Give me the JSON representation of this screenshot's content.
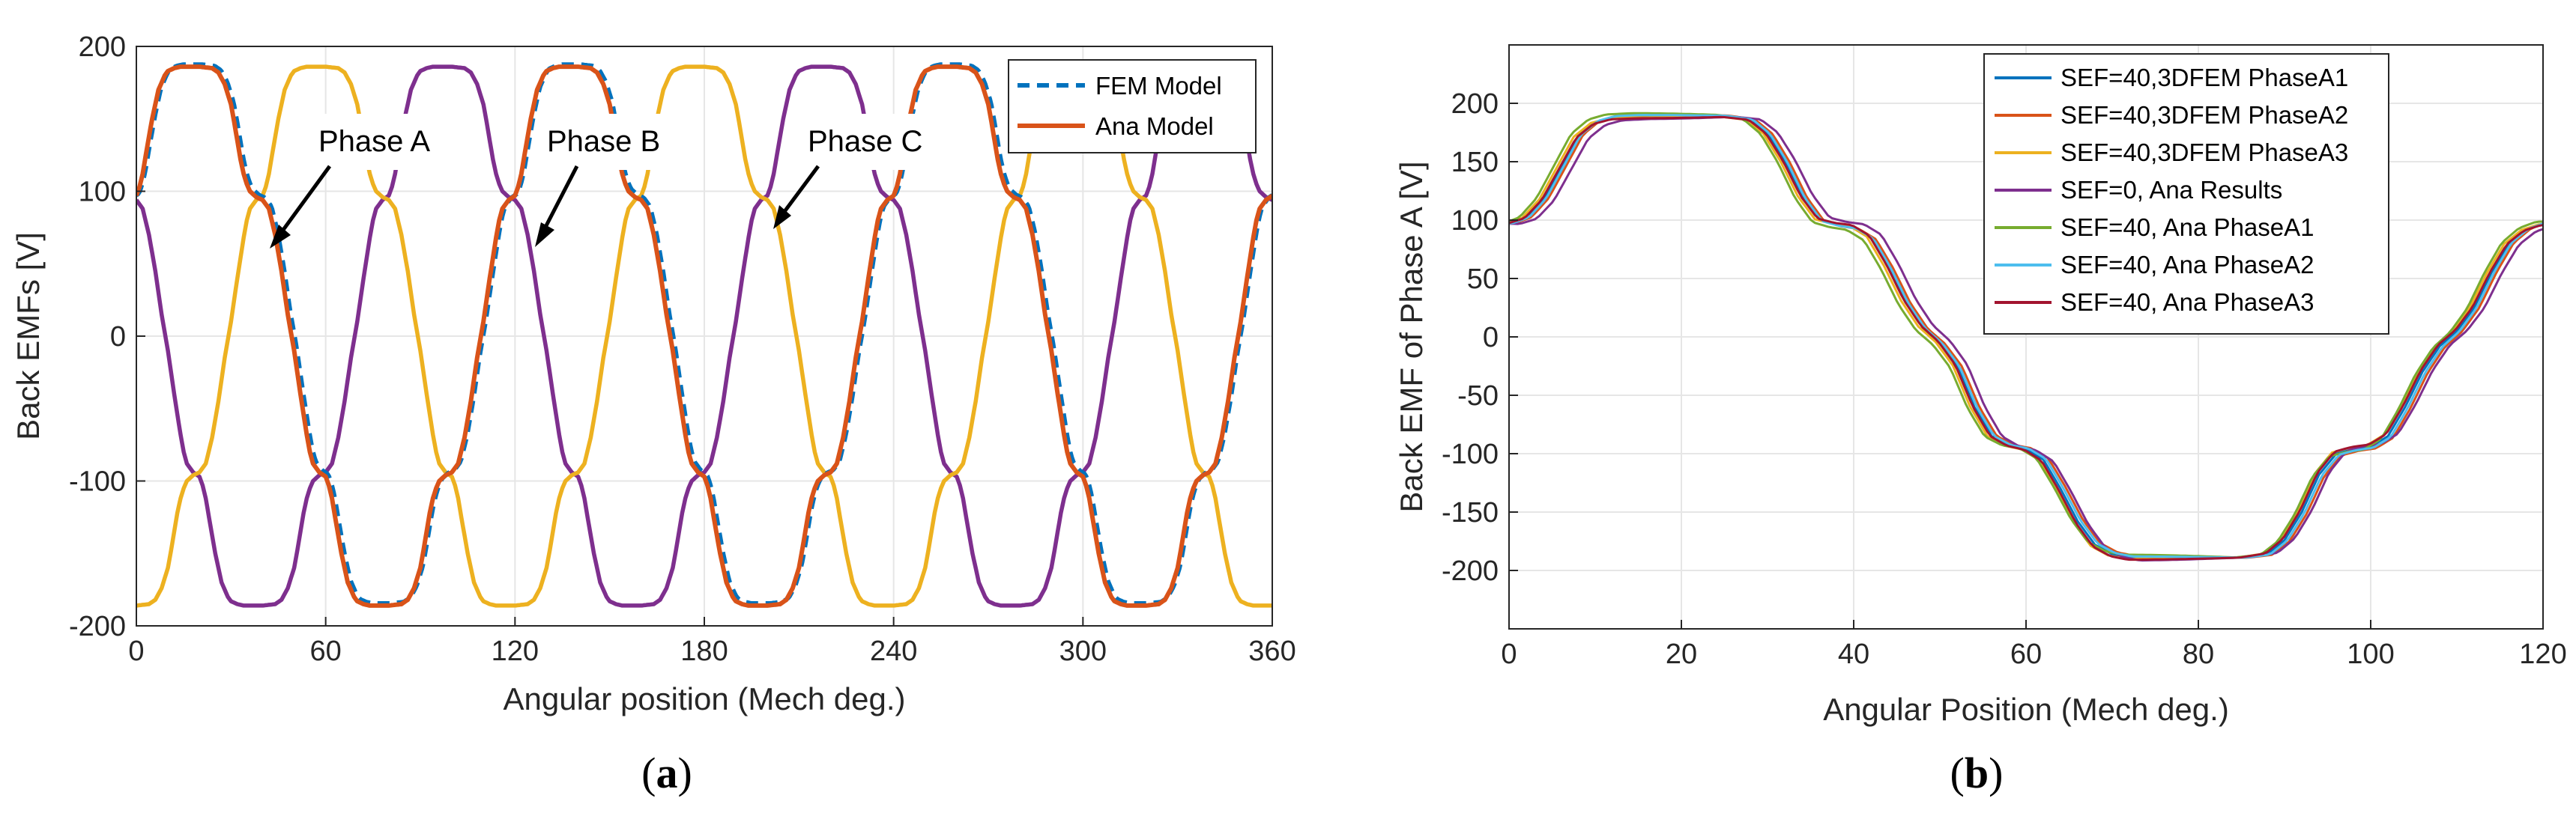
{
  "colors": {
    "grid": "#e6e6e6",
    "axis": "#262626",
    "fem": "#0072bd",
    "ana": "#d95319",
    "phaseB": "#7e2f8e",
    "phaseC": "#edb120",
    "b_series": [
      "#0072bd",
      "#d95319",
      "#edb120",
      "#7e2f8e",
      "#77ac30",
      "#4dbeee",
      "#a2142f"
    ]
  },
  "chart_data": [
    {
      "id": "a",
      "type": "line",
      "caption_open": "(",
      "caption_letter": "a",
      "caption_close": ")",
      "xlabel": "Angular position (Mech deg.)",
      "ylabel": "Back EMFs [V]",
      "xlim": [
        0,
        360
      ],
      "ylim": [
        -200,
        200
      ],
      "xticks": [
        0,
        60,
        120,
        180,
        240,
        300,
        360
      ],
      "yticks": [
        -200,
        -100,
        0,
        100,
        200
      ],
      "grid": true,
      "legend_position": "top-right",
      "legend": [
        {
          "name": "FEM Model",
          "style": "dashed",
          "color": "#0072bd"
        },
        {
          "name": "Ana Model",
          "style": "solid",
          "color": "#d95319"
        }
      ],
      "annotations": [
        {
          "text": "Phase A",
          "x": 40,
          "y": 60
        },
        {
          "text": "Phase B",
          "x": 122,
          "y": 60
        },
        {
          "text": "Phase C",
          "x": 200,
          "y": 72
        }
      ],
      "waveform": {
        "description": "trapezoidal back-EMF, period 120 mech deg",
        "shape_x": [
          0,
          1,
          2,
          3,
          5,
          7,
          9,
          10,
          12,
          14,
          16,
          18,
          20,
          24,
          26,
          28,
          30,
          31,
          32,
          33,
          34,
          35,
          36,
          38,
          40,
          42,
          44,
          46,
          47,
          48,
          50,
          52,
          54,
          55,
          56,
          58,
          60
        ],
        "shape_y": [
          97,
          103,
          112,
          125,
          150,
          170,
          180,
          183,
          185,
          186,
          186,
          186,
          186,
          185,
          182,
          174,
          160,
          148,
          135,
          122,
          112,
          105,
          100,
          96,
          94,
          88,
          70,
          45,
          30,
          15,
          -10,
          -40,
          -68,
          -80,
          -88,
          -94,
          -97
        ],
        "series": [
          {
            "name": "Phase A (Ana Model)",
            "shift": 0,
            "color": "#d95319"
          },
          {
            "name": "Phase A (FEM Model)",
            "shift": 0,
            "color": "#0072bd"
          },
          {
            "name": "Phase B",
            "shift": 80,
            "color": "#7e2f8e"
          },
          {
            "name": "Phase C",
            "shift": 40,
            "color": "#edb120"
          }
        ]
      }
    },
    {
      "id": "b",
      "type": "line",
      "caption_open": "(",
      "caption_letter": "b",
      "caption_close": ")",
      "xlabel": "Angular Position (Mech deg.)",
      "ylabel": "Back EMF of Phase A [V]",
      "xlim": [
        0,
        120
      ],
      "ylim": [
        -250,
        250
      ],
      "xticks": [
        0,
        20,
        40,
        60,
        80,
        100,
        120
      ],
      "yticks": [
        -200,
        -150,
        -100,
        -50,
        0,
        50,
        100,
        150,
        200
      ],
      "grid": true,
      "legend_position": "top-right",
      "x": [
        0,
        2,
        4,
        6,
        8,
        10,
        12,
        15,
        20,
        25,
        28,
        30,
        32,
        34,
        36,
        38,
        40,
        42,
        44,
        46,
        48,
        50,
        52,
        54,
        56,
        58,
        60,
        62,
        64,
        66,
        68,
        70,
        72,
        75,
        80,
        85,
        88,
        90,
        92,
        94,
        96,
        98,
        100,
        102,
        104,
        106,
        108,
        110,
        112,
        114,
        116,
        118,
        120
      ],
      "base_y": [
        97,
        102,
        118,
        145,
        172,
        184,
        188,
        189,
        189,
        189,
        186,
        174,
        150,
        120,
        100,
        96,
        94,
        85,
        60,
        30,
        8,
        -5,
        -25,
        -60,
        -85,
        -93,
        -96,
        -105,
        -130,
        -158,
        -178,
        -186,
        -189,
        -189,
        -189,
        -189,
        -186,
        -174,
        -150,
        -118,
        -100,
        -96,
        -94,
        -85,
        -60,
        -30,
        -8,
        5,
        25,
        55,
        80,
        92,
        97
      ],
      "series": [
        {
          "name": "SEF=40,3DFEM PhaseA1",
          "offset": 0.0,
          "phase": 0.0,
          "color": "#0072bd"
        },
        {
          "name": "SEF=40,3DFEM PhaseA2",
          "offset": 1.5,
          "phase": 0.6,
          "color": "#d95319"
        },
        {
          "name": "SEF=40,3DFEM PhaseA3",
          "offset": -1.0,
          "phase": -0.5,
          "color": "#edb120"
        },
        {
          "name": "SEF=0, Ana Results",
          "offset": -2.5,
          "phase": 1.2,
          "color": "#7e2f8e"
        },
        {
          "name": "SEF=40, Ana PhaseA1",
          "offset": 2.5,
          "phase": -0.8,
          "color": "#77ac30"
        },
        {
          "name": "SEF=40, Ana PhaseA2",
          "offset": 1.0,
          "phase": 0.3,
          "color": "#4dbeee"
        },
        {
          "name": "SEF=40, Ana PhaseA3",
          "offset": -1.8,
          "phase": -0.2,
          "color": "#a2142f"
        }
      ]
    }
  ]
}
